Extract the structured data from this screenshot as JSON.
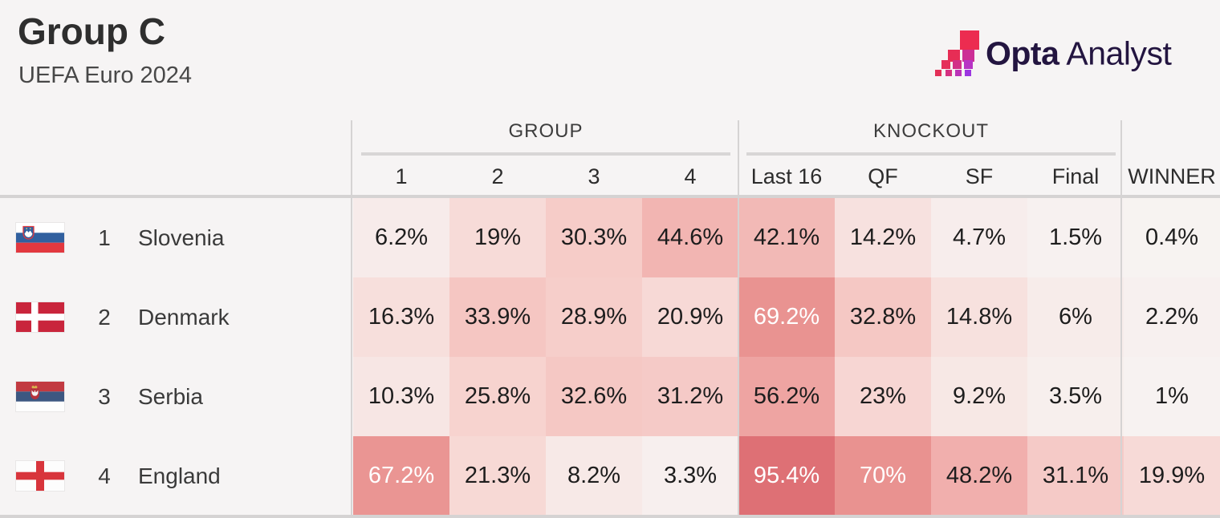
{
  "header": {
    "title": "Group C",
    "subtitle": "UEFA Euro 2024"
  },
  "logo": {
    "name": "Opta Analyst",
    "bold": "Opta",
    "light": "Analyst"
  },
  "table": {
    "group_header": "GROUP",
    "knockout_header": "KNOCKOUT",
    "columns": [
      "1",
      "2",
      "3",
      "4",
      "Last 16",
      "QF",
      "SF",
      "Final",
      "WINNER"
    ],
    "rows": [
      {
        "rank": "1",
        "team": "Slovenia",
        "flag": "slovenia",
        "values": [
          "6.2%",
          "19%",
          "30.3%",
          "44.6%",
          "42.1%",
          "14.2%",
          "4.7%",
          "1.5%",
          "0.4%"
        ]
      },
      {
        "rank": "2",
        "team": "Denmark",
        "flag": "denmark",
        "values": [
          "16.3%",
          "33.9%",
          "28.9%",
          "20.9%",
          "69.2%",
          "32.8%",
          "14.8%",
          "6%",
          "2.2%"
        ]
      },
      {
        "rank": "3",
        "team": "Serbia",
        "flag": "serbia",
        "values": [
          "10.3%",
          "25.8%",
          "32.6%",
          "31.2%",
          "56.2%",
          "23%",
          "9.2%",
          "3.5%",
          "1%"
        ]
      },
      {
        "rank": "4",
        "team": "England",
        "flag": "england",
        "values": [
          "67.2%",
          "21.3%",
          "8.2%",
          "3.3%",
          "95.4%",
          "70%",
          "48.2%",
          "31.1%",
          "19.9%"
        ]
      }
    ]
  },
  "heatmap": {
    "stops": [
      {
        "pct": 0,
        "color": "#f7f3f2"
      },
      {
        "pct": 25,
        "color": "#f7d4d0"
      },
      {
        "pct": 50,
        "color": "#f0acaa"
      },
      {
        "pct": 75,
        "color": "#e78b89"
      },
      {
        "pct": 100,
        "color": "#dc6a71"
      }
    ],
    "light_text_threshold": 60,
    "dark_text": "#1d1d1d",
    "light_text": "#ffffff"
  },
  "chart_data": {
    "type": "heatmap",
    "title": "Group C",
    "subtitle": "UEFA Euro 2024",
    "columns": [
      "1",
      "2",
      "3",
      "4",
      "Last 16",
      "QF",
      "SF",
      "Final",
      "WINNER"
    ],
    "column_groups": [
      {
        "label": "GROUP",
        "columns": [
          "1",
          "2",
          "3",
          "4"
        ]
      },
      {
        "label": "KNOCKOUT",
        "columns": [
          "Last 16",
          "QF",
          "SF",
          "Final"
        ]
      }
    ],
    "rows": [
      "Slovenia",
      "Denmark",
      "Serbia",
      "England"
    ],
    "values_pct": [
      [
        6.2,
        19,
        30.3,
        44.6,
        42.1,
        14.2,
        4.7,
        1.5,
        0.4
      ],
      [
        16.3,
        33.9,
        28.9,
        20.9,
        69.2,
        32.8,
        14.8,
        6,
        2.2
      ],
      [
        10.3,
        25.8,
        32.6,
        31.2,
        56.2,
        23,
        9.2,
        3.5,
        1
      ],
      [
        67.2,
        21.3,
        8.2,
        3.3,
        95.4,
        70,
        48.2,
        31.1,
        19.9
      ]
    ],
    "color_scale": {
      "low": "#f7f3f2",
      "high": "#dc6a71"
    }
  }
}
